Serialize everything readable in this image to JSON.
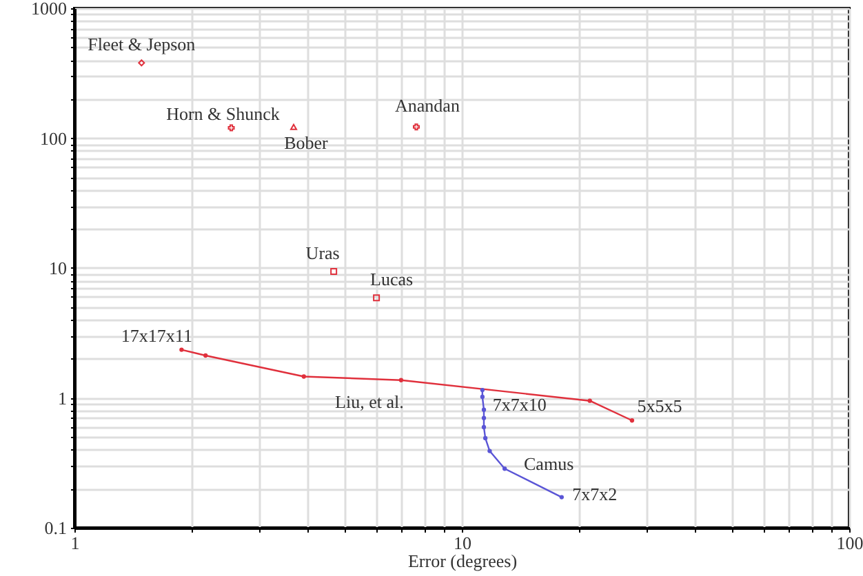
{
  "chart_data": {
    "type": "scatter",
    "xlabel": "Error (degrees)",
    "log": "xy",
    "grid": true,
    "xlim": [
      1,
      100
    ],
    "ylim": [
      0.1,
      1000
    ],
    "xticks": [
      1,
      {
        "value": 2,
        "label": null
      },
      {
        "value": 3,
        "label": null
      },
      {
        "value": 4,
        "label": null
      },
      {
        "value": 5,
        "label": null
      },
      {
        "value": 6,
        "label": null
      },
      {
        "value": 7,
        "label": null
      },
      {
        "value": 8,
        "label": null
      },
      {
        "value": 9,
        "label": null
      },
      10,
      {
        "value": 20,
        "label": null
      },
      {
        "value": 30,
        "label": null
      },
      {
        "value": 40,
        "label": null
      },
      {
        "value": 50,
        "label": null
      },
      {
        "value": 60,
        "label": null
      },
      {
        "value": 70,
        "label": null
      },
      {
        "value": 80,
        "label": null
      },
      {
        "value": 90,
        "label": null
      },
      100
    ],
    "yticks": [
      0.1,
      {
        "value": 0.2,
        "label": null
      },
      {
        "value": 0.3,
        "label": null
      },
      {
        "value": 0.4,
        "label": null
      },
      {
        "value": 0.5,
        "label": null
      },
      {
        "value": 0.6,
        "label": null
      },
      {
        "value": 0.7,
        "label": null
      },
      {
        "value": 0.8,
        "label": null
      },
      {
        "value": 0.9,
        "label": null
      },
      1,
      {
        "value": 2,
        "label": null
      },
      {
        "value": 3,
        "label": null
      },
      {
        "value": 4,
        "label": null
      },
      {
        "value": 5,
        "label": null
      },
      {
        "value": 6,
        "label": null
      },
      {
        "value": 7,
        "label": null
      },
      {
        "value": 8,
        "label": null
      },
      {
        "value": 9,
        "label": null
      },
      10,
      {
        "value": 20,
        "label": null
      },
      {
        "value": 30,
        "label": null
      },
      {
        "value": 40,
        "label": null
      },
      {
        "value": 50,
        "label": null
      },
      {
        "value": 60,
        "label": null
      },
      {
        "value": 70,
        "label": null
      },
      {
        "value": 80,
        "label": null
      },
      {
        "value": 90,
        "label": null
      },
      100,
      {
        "value": 200,
        "label": null
      },
      {
        "value": 300,
        "label": null
      },
      {
        "value": 400,
        "label": null
      },
      {
        "value": 500,
        "label": null
      },
      {
        "value": 600,
        "label": null
      },
      {
        "value": 700,
        "label": null
      },
      {
        "value": 800,
        "label": null
      },
      {
        "value": 900,
        "label": null
      },
      1000
    ],
    "series": [
      {
        "name": "Fleet & Jepson",
        "marker": "diamond",
        "color": "#e0303c",
        "x": [
          1.49
        ],
        "values": [
          380
        ]
      },
      {
        "name": "Horn & Shunck",
        "marker": "cross",
        "color": "#e0303c",
        "x": [
          2.54
        ],
        "values": [
          120
        ]
      },
      {
        "name": "Bober",
        "marker": "triangle",
        "color": "#e0303c",
        "x": [
          3.68
        ],
        "values": [
          122
        ]
      },
      {
        "name": "Anandan",
        "marker": "cross",
        "color": "#e0303c",
        "x": [
          7.63
        ],
        "values": [
          122
        ]
      },
      {
        "name": "Uras",
        "marker": "square",
        "color": "#e0303c",
        "x": [
          4.67
        ],
        "values": [
          9.4
        ]
      },
      {
        "name": "Lucas",
        "marker": "square",
        "color": "#e0303c",
        "x": [
          6.02
        ],
        "values": [
          5.9
        ]
      },
      {
        "name": "Liu, et al.",
        "type": "line",
        "marker": "circle",
        "line_style": "solid",
        "color": "#e0303c",
        "x": [
          1.89,
          2.18,
          3.91,
          6.97,
          21.4,
          27.5
        ],
        "values": [
          2.35,
          2.12,
          1.46,
          1.37,
          0.95,
          0.67
        ]
      },
      {
        "name": "Camus",
        "type": "line",
        "marker": "circle",
        "line_style": "solid",
        "color": "#5a55d6",
        "x": [
          11.3,
          11.3,
          11.4,
          11.4,
          11.4,
          11.5,
          11.8,
          12.9,
          18.1
        ],
        "values": [
          1.15,
          1.02,
          0.81,
          0.7,
          0.595,
          0.49,
          0.39,
          0.285,
          0.172
        ]
      }
    ],
    "annotations": [
      {
        "text": "17x17x11",
        "x": 1.89,
        "y": 2.35
      },
      {
        "text": "7x7x10",
        "x": 11.3,
        "y": 1.15
      },
      {
        "text": "5x5x5",
        "x": 27.5,
        "y": 0.67
      },
      {
        "text": "7x7x2",
        "x": 18.1,
        "y": 0.172
      }
    ]
  }
}
